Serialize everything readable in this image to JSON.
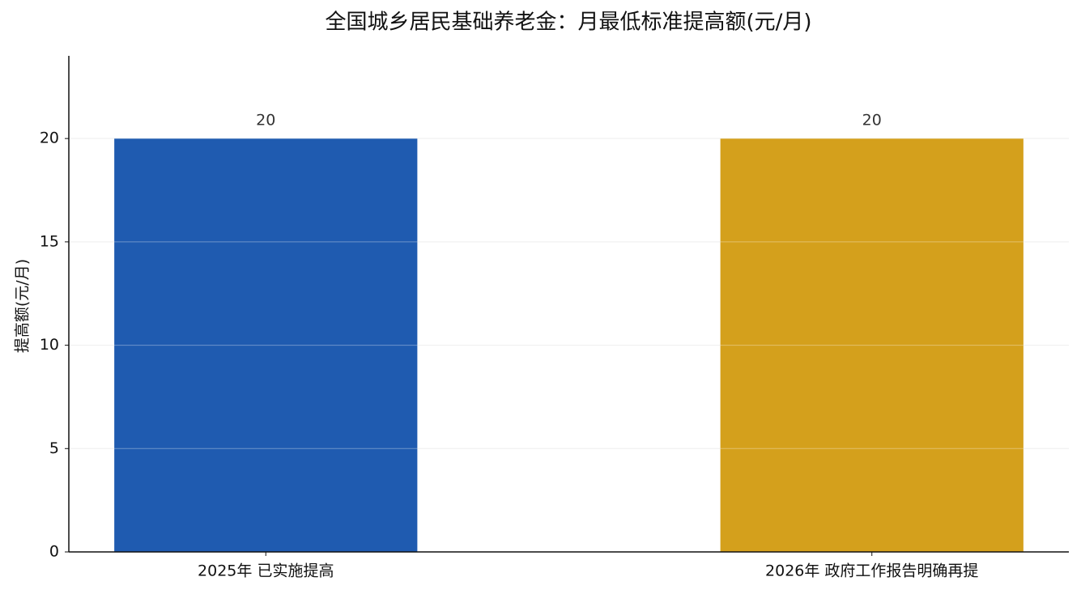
{
  "chart_data": {
    "type": "bar",
    "title": "全国城乡居民基础养老金：月最低标准提高额(元/月)",
    "ylabel": "提高额(元/月)",
    "categories": [
      "2025年 已实施提高",
      "2026年 政府工作报告明确再提"
    ],
    "values": [
      20,
      20
    ],
    "colors": [
      "#1f5bb0",
      "#d4a01c"
    ],
    "ylim": [
      0,
      24
    ],
    "yticks": [
      0,
      5,
      10,
      15,
      20
    ],
    "grid": true
  }
}
